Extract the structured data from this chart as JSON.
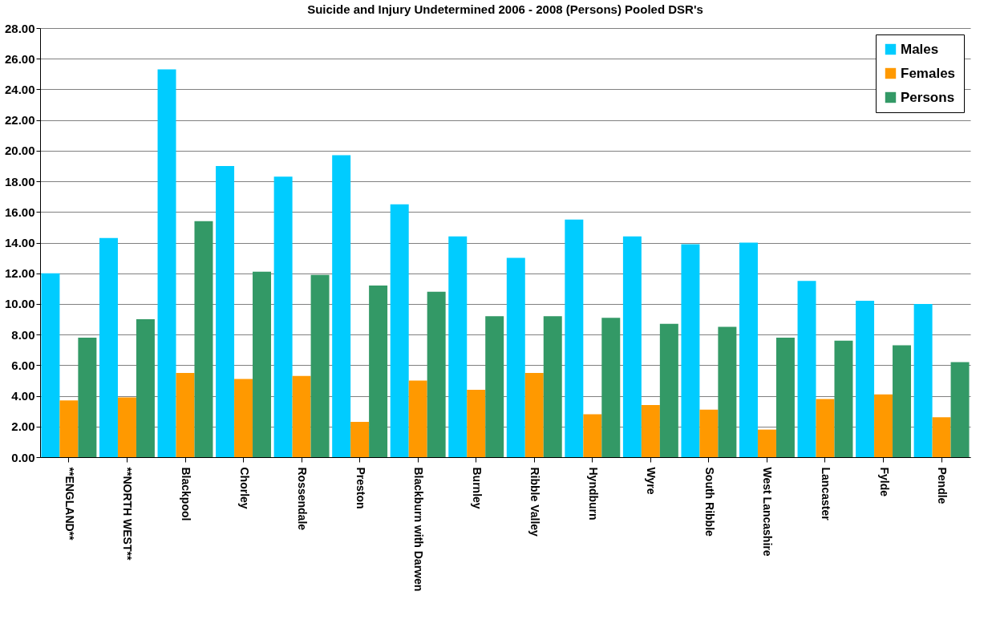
{
  "chart_data": {
    "type": "bar",
    "title": "Suicide and Injury Undetermined 2006 - 2008 (Persons) Pooled DSR's",
    "categories": [
      "**ENGLAND**",
      "**NORTH WEST**",
      "Blackpool",
      "Chorley",
      "Rossendale",
      "Preston",
      "Blackburn with Darwen",
      "Burnley",
      "Ribble Valley",
      "Hyndburn",
      "Wyre",
      "South Ribble",
      "West Lancashire",
      "Lancaster",
      "Fylde",
      "Pendle"
    ],
    "series": [
      {
        "name": "Males",
        "color": "#00ccff",
        "values": [
          12.0,
          14.3,
          25.3,
          19.0,
          18.3,
          19.7,
          16.5,
          14.4,
          13.0,
          15.5,
          14.4,
          13.9,
          14.0,
          11.5,
          10.2,
          10.0
        ]
      },
      {
        "name": "Females",
        "color": "#ff9900",
        "values": [
          3.7,
          3.9,
          5.5,
          5.1,
          5.3,
          2.3,
          5.0,
          4.4,
          5.5,
          2.8,
          3.4,
          3.1,
          1.8,
          3.8,
          4.1,
          2.6
        ]
      },
      {
        "name": "Persons",
        "color": "#339966",
        "values": [
          7.8,
          9.0,
          15.4,
          12.1,
          11.9,
          11.2,
          10.8,
          9.2,
          9.2,
          9.1,
          8.7,
          8.5,
          7.8,
          7.6,
          7.3,
          6.2
        ]
      }
    ],
    "ylim": [
      0,
      28
    ],
    "yticks": [
      {
        "value": 0,
        "label": "0.00"
      },
      {
        "value": 2,
        "label": "2.00"
      },
      {
        "value": 4,
        "label": "4.00"
      },
      {
        "value": 6,
        "label": "6.00"
      },
      {
        "value": 8,
        "label": "8.00"
      },
      {
        "value": 10,
        "label": "10.00"
      },
      {
        "value": 12,
        "label": "12.00"
      },
      {
        "value": 14,
        "label": "14.00"
      },
      {
        "value": 16,
        "label": "16.00"
      },
      {
        "value": 18,
        "label": "18.00"
      },
      {
        "value": 20,
        "label": "20.00"
      },
      {
        "value": 22,
        "label": "22.00"
      },
      {
        "value": 24,
        "label": "24.00"
      },
      {
        "value": 26,
        "label": "26.00"
      },
      {
        "value": 28,
        "label": "28.00"
      }
    ],
    "grid": "y",
    "legend": "top right"
  }
}
